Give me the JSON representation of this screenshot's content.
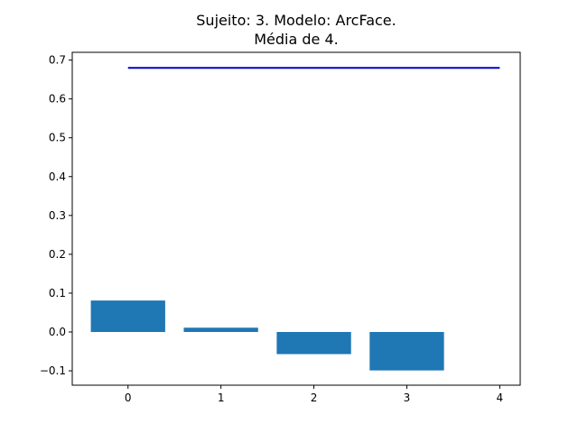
{
  "chart_data": {
    "type": "bar",
    "title_lines": [
      "Sujeito: 3. Modelo: ArcFace.",
      "Média de 4."
    ],
    "xlabel": "",
    "ylabel": "",
    "categories": [
      "0",
      "1",
      "2",
      "3"
    ],
    "values": [
      0.081,
      0.011,
      -0.057,
      -0.099
    ],
    "bar_color": "#1f77b4",
    "reference_line": {
      "value": 0.68,
      "x_range": [
        0,
        4
      ],
      "color": "#0000cc"
    },
    "xlim": [
      -0.6,
      4.22
    ],
    "ylim": [
      -0.137,
      0.72
    ],
    "xticks": [
      0,
      1,
      2,
      3,
      4
    ],
    "xtick_labels": [
      "0",
      "1",
      "2",
      "3",
      "4"
    ],
    "yticks": [
      -0.1,
      0.0,
      0.1,
      0.2,
      0.3,
      0.4,
      0.5,
      0.6,
      0.7
    ],
    "ytick_labels": [
      "−0.1",
      "0.0",
      "0.1",
      "0.2",
      "0.3",
      "0.4",
      "0.5",
      "0.6",
      "0.7"
    ],
    "grid": false,
    "legend": "none"
  }
}
